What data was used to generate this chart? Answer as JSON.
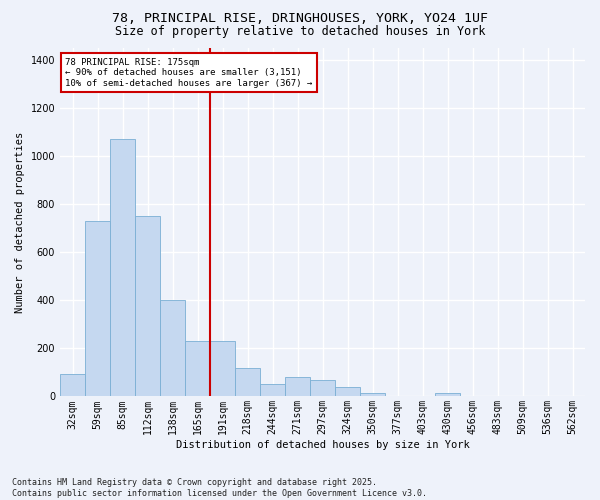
{
  "title_line1": "78, PRINCIPAL RISE, DRINGHOUSES, YORK, YO24 1UF",
  "title_line2": "Size of property relative to detached houses in York",
  "xlabel": "Distribution of detached houses by size in York",
  "ylabel": "Number of detached properties",
  "categories": [
    "32sqm",
    "59sqm",
    "85sqm",
    "112sqm",
    "138sqm",
    "165sqm",
    "191sqm",
    "218sqm",
    "244sqm",
    "271sqm",
    "297sqm",
    "324sqm",
    "350sqm",
    "377sqm",
    "403sqm",
    "430sqm",
    "456sqm",
    "483sqm",
    "509sqm",
    "536sqm",
    "562sqm"
  ],
  "values": [
    95,
    730,
    1070,
    750,
    400,
    230,
    230,
    120,
    50,
    80,
    70,
    40,
    15,
    0,
    0,
    15,
    0,
    0,
    0,
    0,
    0
  ],
  "bar_color": "#c5d8f0",
  "bar_edge_color": "#7aafd4",
  "vline_color": "#cc0000",
  "annotation_text": "78 PRINCIPAL RISE: 175sqm\n← 90% of detached houses are smaller (3,151)\n10% of semi-detached houses are larger (367) →",
  "annotation_box_color": "#ffffff",
  "annotation_box_edge": "#cc0000",
  "footer": "Contains HM Land Registry data © Crown copyright and database right 2025.\nContains public sector information licensed under the Open Government Licence v3.0.",
  "ylim": [
    0,
    1450
  ],
  "yticks": [
    0,
    200,
    400,
    600,
    800,
    1000,
    1200,
    1400
  ],
  "background_color": "#eef2fa",
  "plot_background": "#eef2fa",
  "grid_color": "#ffffff",
  "title_fontsize": 9.5,
  "subtitle_fontsize": 8.5,
  "axis_label_fontsize": 7.5,
  "tick_fontsize": 7,
  "annotation_fontsize": 6.5,
  "footer_fontsize": 6
}
